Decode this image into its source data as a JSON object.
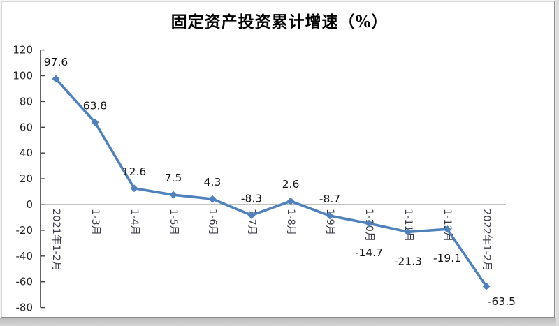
{
  "frame": {
    "background": "#ffffff",
    "border_color": "#8c8c8c",
    "bottom_strip_color": "#c9c9c9"
  },
  "chart_data": {
    "type": "line",
    "title": "固定资产投资累计增速（%）",
    "categories": [
      "2021年1-2月",
      "1-3月",
      "1-4月",
      "1-5月",
      "1-6月",
      "1-7月",
      "1-8月",
      "1-9月",
      "1-10月",
      "1-11月",
      "1-12月",
      "2022年1-2月"
    ],
    "values": [
      97.6,
      63.8,
      12.6,
      7.5,
      4.3,
      -8.3,
      2.6,
      -8.7,
      -14.7,
      -21.3,
      -19.1,
      -63.5
    ],
    "data_label_positions": [
      "above",
      "above",
      "above",
      "above",
      "above",
      "above",
      "above",
      "above",
      "below-far",
      "below-far",
      "below-far",
      "below-right"
    ],
    "y_ticks": [
      120,
      100,
      80,
      60,
      40,
      20,
      0,
      -20,
      -40,
      -60,
      -80
    ],
    "ylim": [
      -80,
      120
    ],
    "xlabel": "",
    "ylabel": "",
    "legend": "none",
    "grid": "zero-line-only",
    "marker": "diamond",
    "colors": {
      "line": "#4F81BD",
      "marker": "#4F81BD",
      "axis": "#3f3f3f",
      "zero_line": "#9a9a9a",
      "tick_label": "#262626",
      "category_label": "#3d3d4a",
      "data_label": "#141414",
      "title": "#000000"
    }
  }
}
